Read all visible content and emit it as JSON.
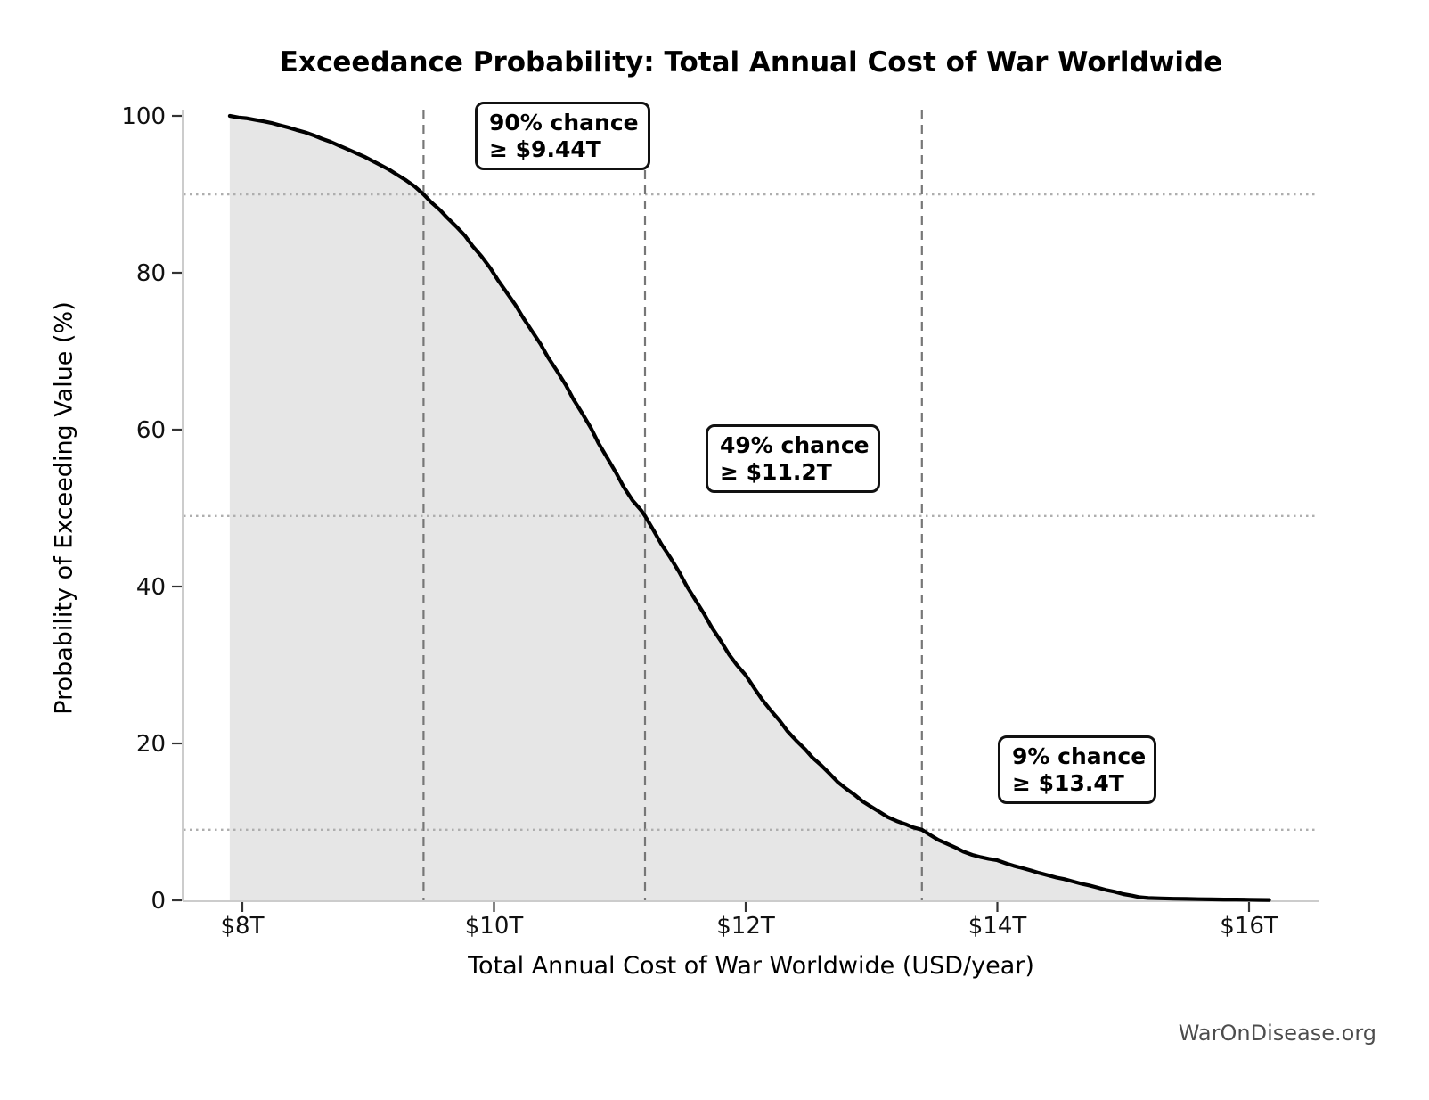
{
  "watermark": "WarOnDisease.org",
  "chart_data": {
    "type": "line",
    "title": "Exceedance Probability: Total Annual Cost of War Worldwide",
    "xlabel": "Total Annual Cost of War Worldwide (USD/year)",
    "ylabel": "Probability of Exceeding Value (%)",
    "x_unit": "trillions of USD per year",
    "xlim": [
      7.53,
      16.56
    ],
    "ylim": [
      0,
      100
    ],
    "grid": "none (dashed vertical and dotted horizontal reference lines only)",
    "legend": "none",
    "line_color": "#000000",
    "fill_color": "#e6e6e6",
    "dashed_line_color": "#777777",
    "dotted_line_color": "#aeaeae",
    "spine_color": "#cccccc",
    "x_ticks": [
      {
        "value": 8,
        "label": "$8T"
      },
      {
        "value": 10,
        "label": "$10T"
      },
      {
        "value": 12,
        "label": "$12T"
      },
      {
        "value": 14,
        "label": "$14T"
      },
      {
        "value": 16,
        "label": "$16T"
      }
    ],
    "y_ticks": [
      {
        "value": 0,
        "label": "0"
      },
      {
        "value": 20,
        "label": "20"
      },
      {
        "value": 40,
        "label": "40"
      },
      {
        "value": 60,
        "label": "60"
      },
      {
        "value": 80,
        "label": "80"
      },
      {
        "value": 100,
        "label": "100"
      }
    ],
    "annotations": [
      {
        "line1": "90% chance",
        "line2": "≥ $9.44T",
        "x_trillions": 9.44,
        "probability_pct": 90
      },
      {
        "line1": "49% chance",
        "line2": "≥ $11.2T",
        "x_trillions": 11.2,
        "probability_pct": 49
      },
      {
        "line1": "9% chance",
        "line2": "≥ $13.4T",
        "x_trillions": 13.4,
        "probability_pct": 9
      }
    ],
    "series": [
      {
        "name": "Exceedance probability of total annual cost of war",
        "points": [
          [
            7.9,
            100.0
          ],
          [
            7.97,
            99.8
          ],
          [
            8.03,
            99.7
          ],
          [
            8.1,
            99.5
          ],
          [
            8.17,
            99.3
          ],
          [
            8.23,
            99.1
          ],
          [
            8.3,
            98.8
          ],
          [
            8.37,
            98.5
          ],
          [
            8.43,
            98.2
          ],
          [
            8.5,
            97.9
          ],
          [
            8.57,
            97.5
          ],
          [
            8.63,
            97.1
          ],
          [
            8.7,
            96.7
          ],
          [
            8.77,
            96.2
          ],
          [
            8.83,
            95.8
          ],
          [
            8.9,
            95.3
          ],
          [
            8.97,
            94.8
          ],
          [
            9.03,
            94.3
          ],
          [
            9.1,
            93.7
          ],
          [
            9.17,
            93.1
          ],
          [
            9.23,
            92.5
          ],
          [
            9.3,
            91.8
          ],
          [
            9.37,
            91.0
          ],
          [
            9.44,
            90.0
          ],
          [
            9.5,
            89.0
          ],
          [
            9.57,
            88.0
          ],
          [
            9.63,
            87.0
          ],
          [
            9.7,
            85.9
          ],
          [
            9.77,
            84.7
          ],
          [
            9.83,
            83.4
          ],
          [
            9.9,
            82.1
          ],
          [
            9.97,
            80.6
          ],
          [
            10.03,
            79.1
          ],
          [
            10.1,
            77.5
          ],
          [
            10.17,
            75.9
          ],
          [
            10.23,
            74.3
          ],
          [
            10.3,
            72.6
          ],
          [
            10.37,
            70.9
          ],
          [
            10.43,
            69.2
          ],
          [
            10.5,
            67.5
          ],
          [
            10.57,
            65.7
          ],
          [
            10.63,
            63.9
          ],
          [
            10.7,
            62.1
          ],
          [
            10.77,
            60.2
          ],
          [
            10.83,
            58.3
          ],
          [
            10.9,
            56.4
          ],
          [
            10.97,
            54.5
          ],
          [
            11.03,
            52.7
          ],
          [
            11.1,
            51.0
          ],
          [
            11.17,
            49.7
          ],
          [
            11.2,
            49.0
          ],
          [
            11.27,
            47.1
          ],
          [
            11.33,
            45.4
          ],
          [
            11.4,
            43.7
          ],
          [
            11.47,
            41.9
          ],
          [
            11.53,
            40.1
          ],
          [
            11.6,
            38.3
          ],
          [
            11.67,
            36.5
          ],
          [
            11.73,
            34.8
          ],
          [
            11.8,
            33.1
          ],
          [
            11.87,
            31.3
          ],
          [
            11.93,
            30.0
          ],
          [
            12.0,
            28.7
          ],
          [
            12.07,
            27.0
          ],
          [
            12.13,
            25.6
          ],
          [
            12.2,
            24.2
          ],
          [
            12.27,
            22.9
          ],
          [
            12.33,
            21.6
          ],
          [
            12.4,
            20.4
          ],
          [
            12.47,
            19.3
          ],
          [
            12.53,
            18.2
          ],
          [
            12.6,
            17.2
          ],
          [
            12.67,
            16.1
          ],
          [
            12.73,
            15.1
          ],
          [
            12.8,
            14.2
          ],
          [
            12.87,
            13.4
          ],
          [
            12.93,
            12.6
          ],
          [
            13.0,
            11.9
          ],
          [
            13.07,
            11.2
          ],
          [
            13.13,
            10.6
          ],
          [
            13.2,
            10.1
          ],
          [
            13.27,
            9.7
          ],
          [
            13.33,
            9.3
          ],
          [
            13.4,
            9.0
          ],
          [
            13.47,
            8.3
          ],
          [
            13.53,
            7.7
          ],
          [
            13.6,
            7.2
          ],
          [
            13.67,
            6.7
          ],
          [
            13.73,
            6.2
          ],
          [
            13.8,
            5.8
          ],
          [
            13.87,
            5.5
          ],
          [
            13.93,
            5.3
          ],
          [
            14.0,
            5.1
          ],
          [
            14.07,
            4.7
          ],
          [
            14.13,
            4.4
          ],
          [
            14.2,
            4.1
          ],
          [
            14.27,
            3.8
          ],
          [
            14.33,
            3.5
          ],
          [
            14.4,
            3.2
          ],
          [
            14.47,
            2.9
          ],
          [
            14.53,
            2.7
          ],
          [
            14.6,
            2.4
          ],
          [
            14.67,
            2.1
          ],
          [
            14.73,
            1.9
          ],
          [
            14.8,
            1.6
          ],
          [
            14.87,
            1.3
          ],
          [
            14.93,
            1.1
          ],
          [
            15.0,
            0.8
          ],
          [
            15.07,
            0.6
          ],
          [
            15.13,
            0.4
          ],
          [
            15.2,
            0.3
          ],
          [
            15.3,
            0.25
          ],
          [
            15.4,
            0.2
          ],
          [
            15.5,
            0.18
          ],
          [
            15.6,
            0.15
          ],
          [
            15.7,
            0.12
          ],
          [
            15.8,
            0.1
          ],
          [
            15.9,
            0.1
          ],
          [
            16.0,
            0.08
          ],
          [
            16.08,
            0.06
          ],
          [
            16.16,
            0.05
          ]
        ]
      }
    ]
  }
}
